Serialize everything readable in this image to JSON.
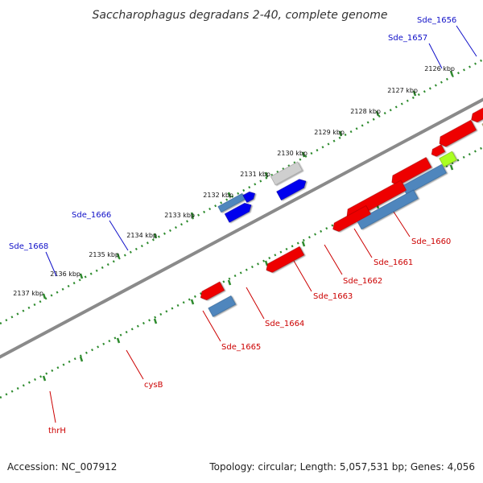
{
  "title": "Saccharophagus degradans 2-40, complete genome",
  "footer": {
    "accession": "Accession: NC_007912",
    "topology": "Topology: circular; Length: 5,057,531 bp; Genes: 4,056"
  },
  "colors": {
    "backbone": "#8a8a8a",
    "tick_ring": "#2e8b2e",
    "forward_label": "#1010c8",
    "reverse_label": "#cc0000"
  },
  "kbp_labels": [
    "2126 kbp",
    "2127 kbp",
    "2128 kbp",
    "2129 kbp",
    "2130 kbp",
    "2131 kbp",
    "2132 kbp",
    "2133 kbp",
    "2134 kbp",
    "2135 kbp",
    "2136 kbp",
    "2137 kbp"
  ],
  "forward_gene_labels": [
    "Sde_1656",
    "Sde_1657",
    "Sde_1666",
    "Sde_1668"
  ],
  "reverse_gene_labels": [
    "Sde_1660",
    "Sde_1661",
    "Sde_1662",
    "Sde_1663",
    "Sde_1664",
    "Sde_1665",
    "cysB",
    "thrH"
  ],
  "features": [
    {
      "strand": "forward",
      "color": "#8f8fd8"
    },
    {
      "strand": "forward",
      "color": "#00d6d6"
    },
    {
      "strand": "forward",
      "color": "#0000ee"
    },
    {
      "strand": "forward",
      "color": "#cfcfcf"
    },
    {
      "strand": "forward",
      "color": "#4f86bd"
    },
    {
      "strand": "reverse",
      "color": "#ee0000"
    },
    {
      "strand": "reverse",
      "color": "#00e6e6"
    },
    {
      "strand": "reverse",
      "color": "#c4bc78"
    },
    {
      "strand": "reverse",
      "color": "#aaff22"
    },
    {
      "strand": "reverse",
      "color": "#4f86bd"
    }
  ]
}
